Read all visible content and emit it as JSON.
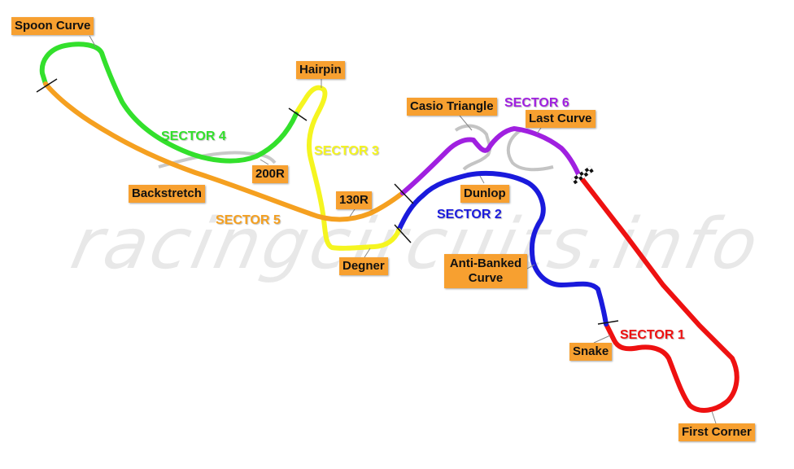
{
  "watermark": "racingcircuits.info",
  "colors": {
    "sector1": "#ee1111",
    "sector2": "#1a1adc",
    "sector3": "#f5f520",
    "sector4": "#33e02c",
    "sector5": "#f5a020",
    "sector6": "#a020e0",
    "label_bg": "#f7a030",
    "old_layout": "#9a9a9a"
  },
  "sectors": {
    "s1": "SECTOR 1",
    "s2": "SECTOR 2",
    "s3": "SECTOR 3",
    "s4": "SECTOR 4",
    "s5": "SECTOR 5",
    "s6": "SECTOR 6"
  },
  "corners": {
    "spoon": "Spoon Curve",
    "hairpin": "Hairpin",
    "casio": "Casio Triangle",
    "last": "Last Curve",
    "r200": "200R",
    "backstretch": "Backstretch",
    "r130": "130R",
    "dunlop": "Dunlop",
    "degner": "Degner",
    "antibanked": "Anti-Banked Curve",
    "snake": "Snake",
    "first": "First Corner"
  },
  "icons": {
    "finish": "checkered-flag-icon"
  }
}
